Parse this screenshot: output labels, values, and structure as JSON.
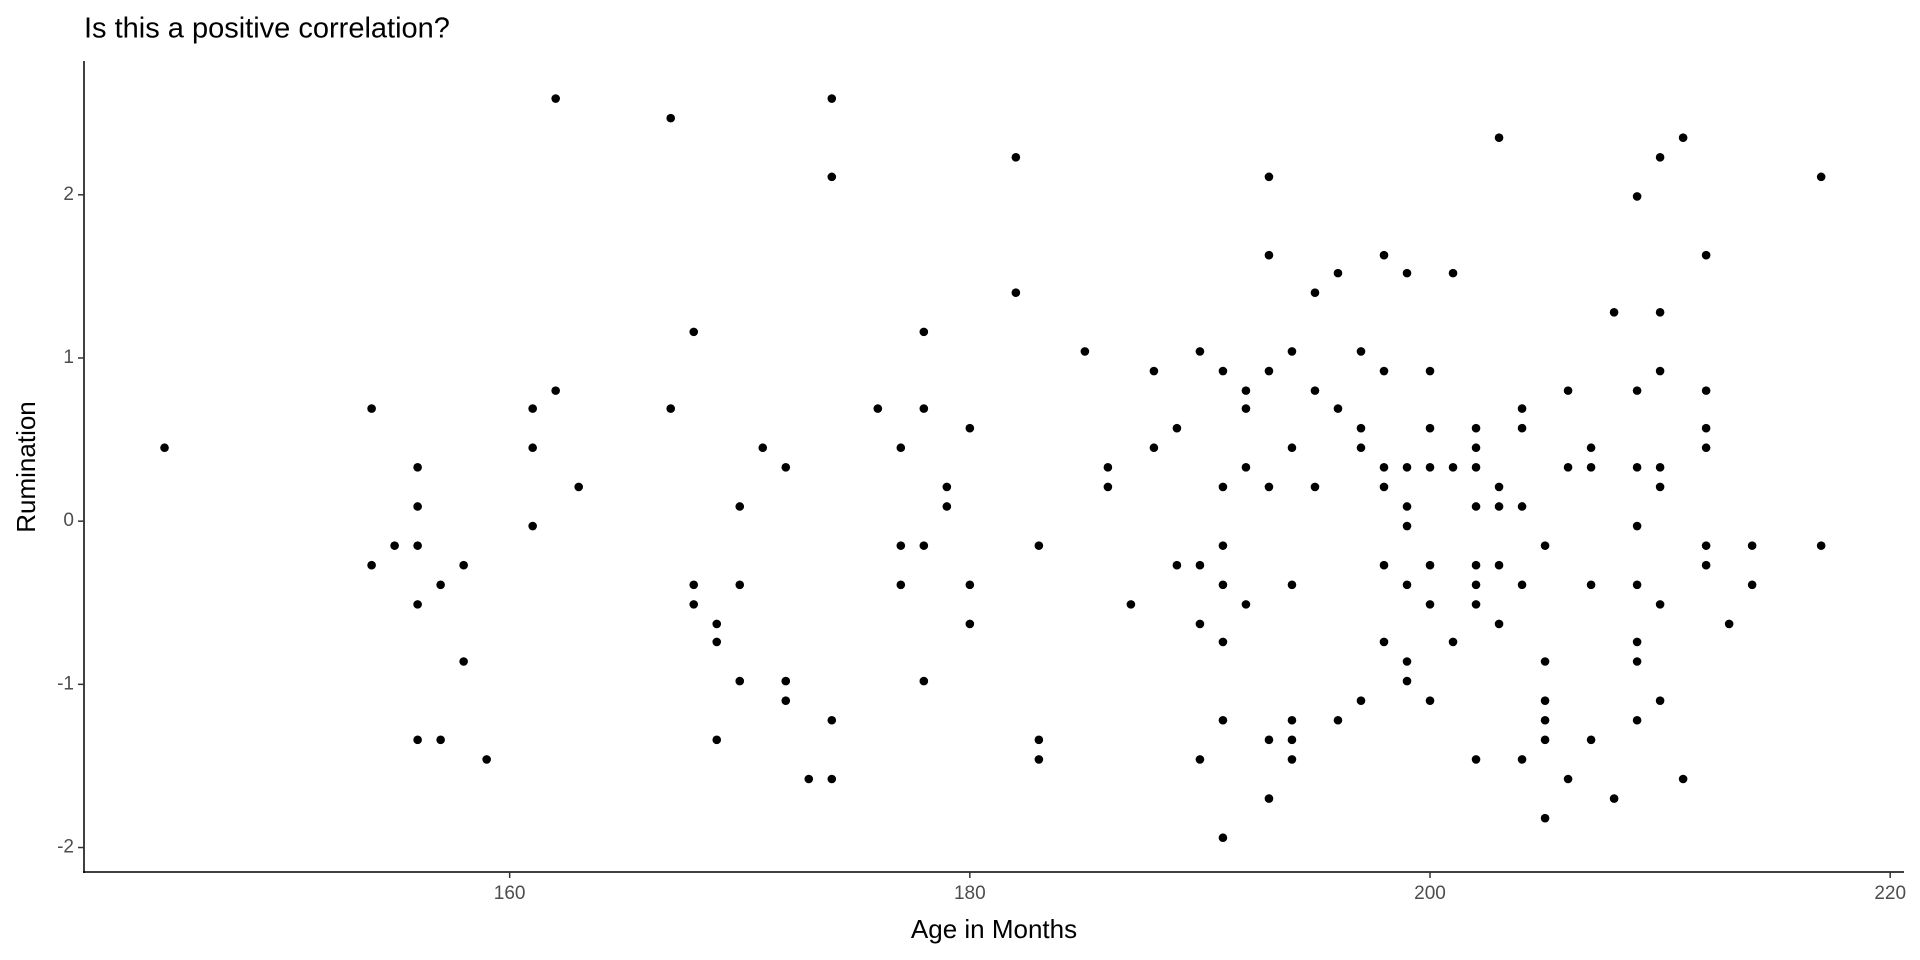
{
  "chart_data": {
    "type": "scatter",
    "title": "Is this a positive correlation?",
    "x_label": "Age in Months",
    "y_label": "Rumination",
    "xlim": [
      141.5,
      220.6
    ],
    "ylim": [
      -2.15,
      2.82
    ],
    "xticks": [
      160,
      180,
      200,
      220
    ],
    "yticks": [
      -2,
      -1,
      0,
      1,
      2
    ],
    "grid": false,
    "series": [
      {
        "color": "#000000",
        "x": [
          145,
          154,
          154,
          155,
          156,
          156,
          156,
          156,
          156,
          157,
          157,
          158,
          158,
          159,
          161,
          161,
          161,
          162,
          162,
          163,
          167,
          167,
          168,
          168,
          168,
          169,
          169,
          169,
          170,
          170,
          170,
          171,
          172,
          172,
          172,
          173,
          174,
          174,
          174,
          174,
          176,
          177,
          177,
          177,
          178,
          178,
          178,
          178,
          179,
          179,
          180,
          180,
          180,
          182,
          182,
          183,
          183,
          183,
          185,
          186,
          186,
          187,
          188,
          188,
          189,
          189,
          190,
          190,
          190,
          190,
          191,
          191,
          191,
          191,
          191,
          191,
          191,
          192,
          192,
          192,
          192,
          193,
          193,
          193,
          193,
          193,
          193,
          194,
          194,
          194,
          194,
          194,
          194,
          195,
          195,
          195,
          196,
          196,
          196,
          197,
          197,
          197,
          197,
          198,
          198,
          198,
          198,
          198,
          198,
          199,
          199,
          199,
          199,
          199,
          199,
          199,
          200,
          200,
          200,
          200,
          200,
          200,
          201,
          201,
          201,
          202,
          202,
          202,
          202,
          202,
          202,
          202,
          202,
          203,
          203,
          203,
          203,
          203,
          204,
          204,
          204,
          204,
          204,
          205,
          205,
          205,
          205,
          205,
          205,
          206,
          206,
          206,
          207,
          207,
          207,
          207,
          208,
          208,
          209,
          209,
          209,
          209,
          209,
          209,
          209,
          209,
          210,
          210,
          210,
          210,
          210,
          210,
          210,
          211,
          211,
          212,
          212,
          212,
          212,
          212,
          212,
          213,
          214,
          214,
          217,
          217
        ],
        "values": [
          0.45,
          0.69,
          -0.27,
          -0.15,
          0.33,
          0.09,
          -0.15,
          -0.51,
          -1.34,
          -0.39,
          -1.34,
          -0.27,
          -0.86,
          -1.46,
          0.69,
          0.45,
          -0.03,
          2.59,
          0.8,
          0.21,
          2.47,
          0.69,
          1.16,
          -0.39,
          -0.51,
          -0.63,
          -0.74,
          -1.34,
          0.09,
          -0.39,
          -0.98,
          0.45,
          0.33,
          -0.98,
          -1.1,
          -1.58,
          2.59,
          2.11,
          -1.22,
          -1.58,
          0.69,
          0.45,
          -0.15,
          -0.39,
          1.16,
          0.69,
          -0.15,
          -0.98,
          0.21,
          0.09,
          0.57,
          -0.39,
          -0.63,
          2.23,
          1.4,
          -0.15,
          -1.34,
          -1.46,
          1.04,
          0.33,
          0.21,
          -0.51,
          0.92,
          0.45,
          0.57,
          -0.27,
          1.04,
          -0.27,
          -0.63,
          -1.46,
          0.92,
          0.21,
          -0.15,
          -0.39,
          -0.74,
          -1.22,
          -1.94,
          0.8,
          0.69,
          0.33,
          -0.51,
          2.11,
          1.63,
          0.92,
          0.21,
          -1.34,
          -1.7,
          1.04,
          0.45,
          -0.39,
          -1.22,
          -1.34,
          -1.46,
          1.4,
          0.8,
          0.21,
          1.52,
          0.69,
          -1.22,
          1.04,
          0.57,
          0.45,
          -1.1,
          1.63,
          0.92,
          0.33,
          0.21,
          -0.27,
          -0.74,
          1.52,
          0.33,
          0.09,
          -0.03,
          -0.39,
          -0.86,
          -0.98,
          0.92,
          0.57,
          0.33,
          -0.27,
          -0.51,
          -1.1,
          1.52,
          0.33,
          -0.74,
          0.57,
          0.45,
          0.33,
          0.09,
          -0.27,
          -0.39,
          -0.51,
          -1.46,
          2.35,
          0.21,
          0.09,
          -0.27,
          -0.63,
          0.69,
          0.57,
          0.09,
          -0.39,
          -1.46,
          -0.15,
          -0.86,
          -1.1,
          -1.22,
          -1.34,
          -1.82,
          0.8,
          0.33,
          -1.58,
          0.45,
          0.33,
          -0.39,
          -1.34,
          1.28,
          -1.7,
          1.99,
          0.8,
          0.33,
          -0.03,
          -0.39,
          -0.74,
          -0.86,
          -1.22,
          2.23,
          1.28,
          0.92,
          0.33,
          0.21,
          -0.51,
          -1.1,
          2.35,
          -1.58,
          1.63,
          0.8,
          0.57,
          0.45,
          -0.15,
          -0.27,
          -0.63,
          -0.15,
          -0.39,
          2.11,
          -0.15
        ]
      }
    ]
  }
}
